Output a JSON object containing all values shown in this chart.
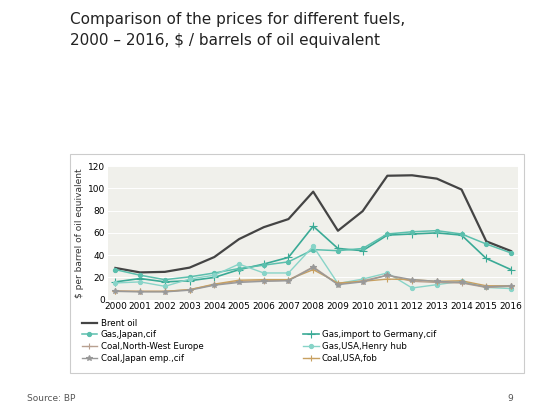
{
  "title": "Comparison of the prices for different fuels,\n2000 – 2016, $ / barrels of oil equivalent",
  "source": "Source: BP",
  "page": "9",
  "ylabel": "$ per barrel of oil equivalent",
  "years": [
    2000,
    2001,
    2002,
    2003,
    2004,
    2005,
    2006,
    2007,
    2008,
    2009,
    2010,
    2011,
    2012,
    2013,
    2014,
    2015,
    2016
  ],
  "series": {
    "Brent oil": {
      "values": [
        28.5,
        24.5,
        25.0,
        28.8,
        38.3,
        54.4,
        65.1,
        72.4,
        97.0,
        61.9,
        79.5,
        111.3,
        111.7,
        108.7,
        98.9,
        52.4,
        43.7
      ],
      "color": "#444444",
      "marker": "None",
      "linestyle": "-",
      "linewidth": 1.6,
      "markersize": 3
    },
    "Gas,import to Germany,cif": {
      "values": [
        16.0,
        19.0,
        16.0,
        17.0,
        20.0,
        27.0,
        32.0,
        38.0,
        66.0,
        46.0,
        44.0,
        58.0,
        59.0,
        60.0,
        58.0,
        37.0,
        27.0
      ],
      "color": "#3aaa96",
      "marker": "+",
      "linestyle": "-",
      "linewidth": 1.2,
      "markersize": 6
    },
    "Gas,Japan,cif": {
      "values": [
        27.0,
        22.0,
        18.0,
        20.5,
        24.0,
        28.0,
        31.0,
        34.0,
        45.0,
        44.0,
        46.0,
        59.0,
        61.0,
        62.0,
        59.0,
        50.0,
        42.0
      ],
      "color": "#5bbfad",
      "marker": "o",
      "linestyle": "-",
      "linewidth": 1.1,
      "markersize": 3
    },
    "Gas,USA,Henry hub": {
      "values": [
        15.0,
        16.0,
        12.0,
        18.5,
        22.0,
        32.0,
        24.0,
        24.0,
        48.0,
        14.5,
        18.5,
        24.0,
        10.5,
        13.5,
        16.5,
        11.0,
        10.0
      ],
      "color": "#88d4c8",
      "marker": "o",
      "linestyle": "-",
      "linewidth": 1.0,
      "markersize": 3
    },
    "Coal,North-West Europe": {
      "values": [
        8.0,
        7.5,
        7.5,
        9.0,
        13.5,
        16.5,
        17.0,
        17.5,
        29.5,
        14.0,
        17.0,
        22.0,
        16.5,
        15.5,
        15.0,
        11.0,
        12.0
      ],
      "color": "#b8a090",
      "marker": "+",
      "linestyle": "-",
      "linewidth": 1.0,
      "markersize": 5
    },
    "Coal,USA,fob": {
      "values": [
        7.5,
        7.5,
        7.5,
        9.0,
        14.0,
        17.5,
        18.0,
        18.0,
        27.0,
        15.0,
        16.5,
        18.5,
        18.0,
        16.5,
        17.0,
        12.5,
        12.5
      ],
      "color": "#c8a060",
      "marker": "+",
      "linestyle": "-",
      "linewidth": 1.0,
      "markersize": 5
    },
    "Coal,Japan emp.,cif": {
      "values": [
        7.5,
        7.0,
        7.0,
        8.5,
        13.0,
        15.5,
        16.5,
        17.0,
        29.0,
        13.5,
        16.0,
        22.0,
        18.0,
        16.5,
        15.5,
        11.5,
        12.5
      ],
      "color": "#999999",
      "marker": "*",
      "linestyle": "-",
      "linewidth": 1.0,
      "markersize": 4
    }
  },
  "ylim": [
    0,
    120
  ],
  "yticks": [
    0,
    20,
    40,
    60,
    80,
    100,
    120
  ],
  "title_fontsize": 11.0,
  "axis_fontsize": 6.5,
  "legend_fontsize": 6.2,
  "box_color": "#cccccc",
  "plot_bg": "#f0f0eb"
}
